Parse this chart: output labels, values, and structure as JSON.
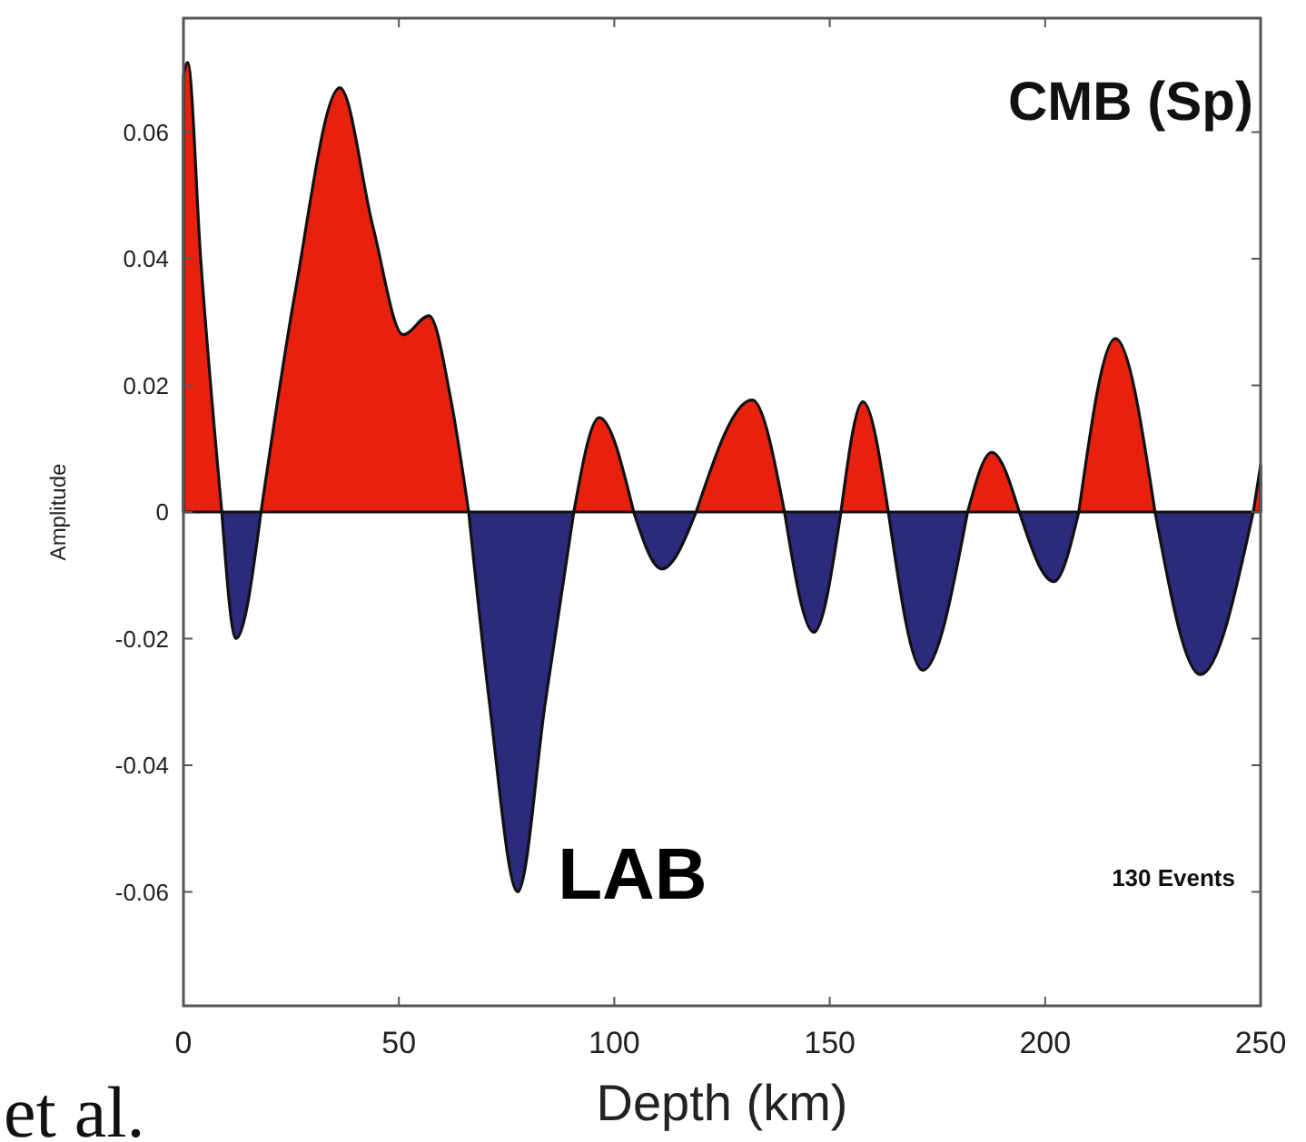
{
  "chart_data": {
    "type": "area",
    "xlabel": "Depth (km)",
    "ylabel": "Amplitude",
    "xlim": [
      0,
      250
    ],
    "xticks": [
      0,
      50,
      100,
      150,
      200,
      250
    ],
    "ylim": [
      -0.078,
      0.078
    ],
    "yticks": [
      -0.06,
      -0.04,
      -0.02,
      0,
      0.02,
      0.04,
      0.06
    ],
    "grid": false,
    "series": [
      {
        "color": "#e8210f",
        "x": [
          0,
          1,
          4,
          8.9,
          13,
          18,
          26,
          36.3,
          44,
          51,
          57,
          62,
          66.2,
          78,
          90.6,
          96.5,
          104.5,
          112,
          119,
          132,
          139.5,
          146,
          152.6,
          157.7,
          163.6,
          172,
          182,
          187.6,
          194,
          201,
          207.8,
          216.3,
          225.5,
          237,
          248.3,
          250
        ],
        "values": [
          0.069,
          0.071,
          0.04,
          0,
          null,
          0,
          0.035,
          0.067,
          0.045,
          0.028,
          0.031,
          0.018,
          0,
          null,
          0,
          0.0149,
          0,
          null,
          0,
          0.0177,
          0,
          null,
          0,
          0.0174,
          0,
          null,
          0,
          0.0094,
          0,
          null,
          0,
          0.0274,
          0,
          null,
          0,
          0.0074
        ]
      },
      {
        "color": "#2b2a7c",
        "x": [
          8.9,
          12.2,
          18,
          40,
          66.2,
          71,
          77.6,
          84,
          90.6,
          98,
          104.5,
          111,
          119,
          130,
          139.5,
          146.3,
          152.6,
          158,
          163.6,
          171.6,
          182,
          188,
          194,
          202,
          207.8,
          216,
          225.5,
          236,
          248.3
        ],
        "values": [
          0,
          -0.02,
          0,
          null,
          0,
          -0.03,
          -0.06,
          -0.03,
          0,
          null,
          0,
          -0.009,
          0,
          null,
          0,
          -0.019,
          0,
          null,
          0,
          -0.025,
          0,
          null,
          0,
          -0.011,
          0,
          null,
          0,
          -0.0257,
          0
        ]
      }
    ],
    "annotations": [
      "CMB (Sp)",
      {
        "text": "LAB",
        "x": 77.6,
        "y": -0.06
      },
      "130 Events",
      "et al."
    ]
  }
}
